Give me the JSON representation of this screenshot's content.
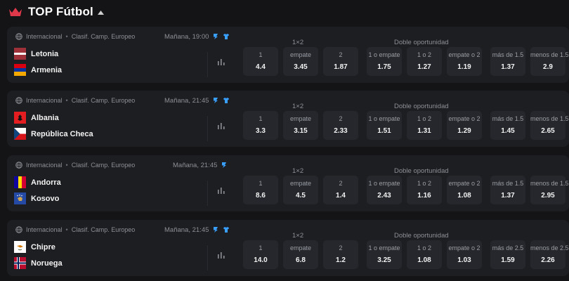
{
  "header": {
    "title": "TOP Fútbol"
  },
  "markets": {
    "m1x2": "1×2",
    "double": "Doble oportunidad"
  },
  "matches": [
    {
      "league": {
        "region": "Internacional",
        "competition": "Clasif. Camp. Europeo"
      },
      "datetime": "Mañana, 19:00",
      "has_shirt": true,
      "home": {
        "name": "Letonia",
        "flag": "latvia"
      },
      "away": {
        "name": "Armenia",
        "flag": "armenia"
      },
      "odds": [
        {
          "label": "1",
          "value": "4.4"
        },
        {
          "label": "empate",
          "value": "3.45"
        },
        {
          "label": "2",
          "value": "1.87"
        },
        {
          "label": "1 o empate",
          "value": "1.75"
        },
        {
          "label": "1 o 2",
          "value": "1.27"
        },
        {
          "label": "empate o 2",
          "value": "1.19"
        },
        {
          "label": "más de 1.5",
          "value": "1.37"
        },
        {
          "label": "menos de 1.5",
          "value": "2.9"
        }
      ]
    },
    {
      "league": {
        "region": "Internacional",
        "competition": "Clasif. Camp. Europeo"
      },
      "datetime": "Mañana, 21:45",
      "has_shirt": true,
      "home": {
        "name": "Albania",
        "flag": "albania"
      },
      "away": {
        "name": "República Checa",
        "flag": "czech"
      },
      "odds": [
        {
          "label": "1",
          "value": "3.3"
        },
        {
          "label": "empate",
          "value": "3.15"
        },
        {
          "label": "2",
          "value": "2.33"
        },
        {
          "label": "1 o empate",
          "value": "1.51"
        },
        {
          "label": "1 o 2",
          "value": "1.31"
        },
        {
          "label": "empate o 2",
          "value": "1.29"
        },
        {
          "label": "más de 1.5",
          "value": "1.45"
        },
        {
          "label": "menos de 1.5",
          "value": "2.65"
        }
      ]
    },
    {
      "league": {
        "region": "Internacional",
        "competition": "Clasif. Camp. Europeo"
      },
      "datetime": "Mañana, 21:45",
      "has_shirt": false,
      "home": {
        "name": "Andorra",
        "flag": "andorra"
      },
      "away": {
        "name": "Kosovo",
        "flag": "kosovo"
      },
      "odds": [
        {
          "label": "1",
          "value": "8.6"
        },
        {
          "label": "empate",
          "value": "4.5"
        },
        {
          "label": "2",
          "value": "1.4"
        },
        {
          "label": "1 o empate",
          "value": "2.43"
        },
        {
          "label": "1 o 2",
          "value": "1.16"
        },
        {
          "label": "empate o 2",
          "value": "1.08"
        },
        {
          "label": "más de 1.5",
          "value": "1.37"
        },
        {
          "label": "menos de 1.5",
          "value": "2.95"
        }
      ]
    },
    {
      "league": {
        "region": "Internacional",
        "competition": "Clasif. Camp. Europeo"
      },
      "datetime": "Mañana, 21:45",
      "has_shirt": true,
      "home": {
        "name": "Chipre",
        "flag": "cyprus"
      },
      "away": {
        "name": "Noruega",
        "flag": "norway"
      },
      "odds": [
        {
          "label": "1",
          "value": "14.0"
        },
        {
          "label": "empate",
          "value": "6.8"
        },
        {
          "label": "2",
          "value": "1.2"
        },
        {
          "label": "1 o empate",
          "value": "3.25"
        },
        {
          "label": "1 o 2",
          "value": "1.08"
        },
        {
          "label": "empate o 2",
          "value": "1.03"
        },
        {
          "label": "más de 2.5",
          "value": "1.59"
        },
        {
          "label": "menos de 2.5",
          "value": "2.26"
        }
      ]
    }
  ],
  "colors": {
    "background": "#141417",
    "card": "#1d1e22",
    "cell": "#25272c",
    "accent_red": "#e0384b",
    "accent_blue": "#3aa0ff"
  }
}
